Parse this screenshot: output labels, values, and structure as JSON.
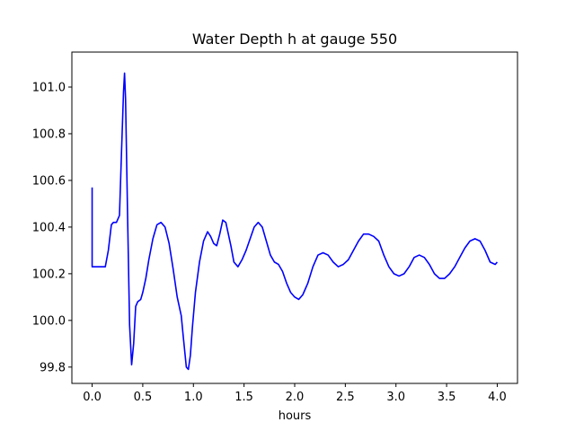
{
  "chart_data": {
    "type": "line",
    "title": "Water Depth h at gauge 550",
    "xlabel": "hours",
    "ylabel": "",
    "xlim": [
      -0.2,
      4.2
    ],
    "ylim": [
      99.73,
      101.15
    ],
    "xticks": [
      0.0,
      0.5,
      1.0,
      1.5,
      2.0,
      2.5,
      3.0,
      3.5,
      4.0
    ],
    "xtick_labels": [
      "0.0",
      "0.5",
      "1.0",
      "1.5",
      "2.0",
      "2.5",
      "3.0",
      "3.5",
      "4.0"
    ],
    "yticks": [
      99.8,
      100.0,
      100.2,
      100.4,
      100.6,
      100.8,
      101.0
    ],
    "ytick_labels": [
      "99.8",
      "100.0",
      "100.2",
      "100.4",
      "100.6",
      "100.8",
      "101.0"
    ],
    "grid": false,
    "legend": "none",
    "colors": {
      "line": "#0000ff",
      "axes": "#000000",
      "background": "#ffffff"
    },
    "series": [
      {
        "x": [
          0.0,
          0.0,
          0.03,
          0.09,
          0.13,
          0.16,
          0.19,
          0.21,
          0.24,
          0.27,
          0.29,
          0.31,
          0.32,
          0.33,
          0.35,
          0.37,
          0.39,
          0.41,
          0.43,
          0.45,
          0.48,
          0.5,
          0.53,
          0.56,
          0.6,
          0.64,
          0.68,
          0.72,
          0.76,
          0.8,
          0.84,
          0.88,
          0.9,
          0.93,
          0.95,
          0.97,
          0.99,
          1.02,
          1.06,
          1.1,
          1.14,
          1.17,
          1.2,
          1.23,
          1.26,
          1.29,
          1.32,
          1.34,
          1.37,
          1.4,
          1.44,
          1.48,
          1.52,
          1.56,
          1.6,
          1.64,
          1.68,
          1.72,
          1.76,
          1.8,
          1.84,
          1.88,
          1.92,
          1.96,
          2.0,
          2.04,
          2.08,
          2.13,
          2.18,
          2.23,
          2.28,
          2.33,
          2.38,
          2.43,
          2.48,
          2.53,
          2.58,
          2.63,
          2.68,
          2.73,
          2.78,
          2.83,
          2.88,
          2.93,
          2.98,
          3.03,
          3.08,
          3.13,
          3.18,
          3.23,
          3.28,
          3.33,
          3.38,
          3.43,
          3.48,
          3.53,
          3.58,
          3.63,
          3.68,
          3.73,
          3.78,
          3.83,
          3.88,
          3.93,
          3.98,
          4.0
        ],
        "y": [
          100.57,
          100.23,
          100.23,
          100.23,
          100.23,
          100.3,
          100.41,
          100.42,
          100.42,
          100.45,
          100.72,
          100.98,
          101.06,
          100.95,
          100.45,
          99.98,
          99.81,
          99.9,
          100.06,
          100.08,
          100.09,
          100.12,
          100.18,
          100.26,
          100.35,
          100.41,
          100.42,
          100.4,
          100.33,
          100.22,
          100.1,
          100.02,
          99.93,
          99.8,
          99.79,
          99.85,
          99.97,
          100.12,
          100.25,
          100.34,
          100.38,
          100.36,
          100.33,
          100.32,
          100.37,
          100.43,
          100.42,
          100.38,
          100.32,
          100.25,
          100.23,
          100.26,
          100.3,
          100.35,
          100.4,
          100.42,
          100.4,
          100.34,
          100.28,
          100.25,
          100.24,
          100.21,
          100.16,
          100.12,
          100.1,
          100.09,
          100.11,
          100.16,
          100.23,
          100.28,
          100.29,
          100.28,
          100.25,
          100.23,
          100.24,
          100.26,
          100.3,
          100.34,
          100.37,
          100.37,
          100.36,
          100.34,
          100.28,
          100.23,
          100.2,
          100.19,
          100.2,
          100.23,
          100.27,
          100.28,
          100.27,
          100.24,
          100.2,
          100.18,
          100.18,
          100.2,
          100.23,
          100.27,
          100.31,
          100.34,
          100.35,
          100.34,
          100.3,
          100.25,
          100.24,
          100.25
        ]
      }
    ]
  }
}
